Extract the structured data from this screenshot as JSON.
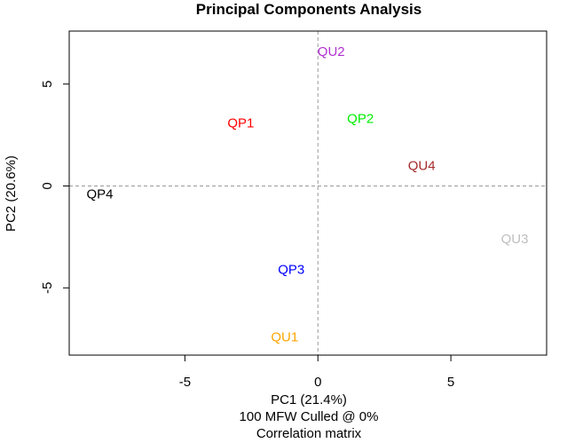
{
  "chart_data": {
    "type": "scatter",
    "title": "Principal Components Analysis",
    "xlabel": "PC1 (21.4%)",
    "ylabel": "PC2 (20.6%)",
    "subtitle_lines": [
      "100 MFW  Culled @ 0%",
      "Correlation matrix"
    ],
    "xlim": [
      -9.35,
      8.6
    ],
    "ylim": [
      -8.3,
      7.6
    ],
    "x_ticks": [
      -5,
      0,
      5
    ],
    "x_tick_labels": [
      "-5",
      "0",
      "5"
    ],
    "y_ticks": [
      -5,
      0,
      5
    ],
    "y_tick_labels": [
      "-5",
      "0",
      "5"
    ],
    "reference_lines": {
      "x": 0,
      "y": 0,
      "style": "dashed",
      "color": "#999999"
    },
    "points": [
      {
        "label": "QU2",
        "x": 0.5,
        "y": 6.6,
        "color": "#b030d0"
      },
      {
        "label": "QP1",
        "x": -2.9,
        "y": 3.1,
        "color": "#ff0000"
      },
      {
        "label": "QP2",
        "x": 1.6,
        "y": 3.3,
        "color": "#00ee00"
      },
      {
        "label": "QU4",
        "x": 3.9,
        "y": 1.0,
        "color": "#a52a2a"
      },
      {
        "label": "QP4",
        "x": -8.2,
        "y": -0.4,
        "color": "#000000"
      },
      {
        "label": "QU3",
        "x": 7.4,
        "y": -2.6,
        "color": "#bebebe"
      },
      {
        "label": "QP3",
        "x": -1.0,
        "y": -4.1,
        "color": "#0000ff"
      },
      {
        "label": "QU1",
        "x": -1.25,
        "y": -7.4,
        "color": "#ffa500"
      }
    ]
  }
}
